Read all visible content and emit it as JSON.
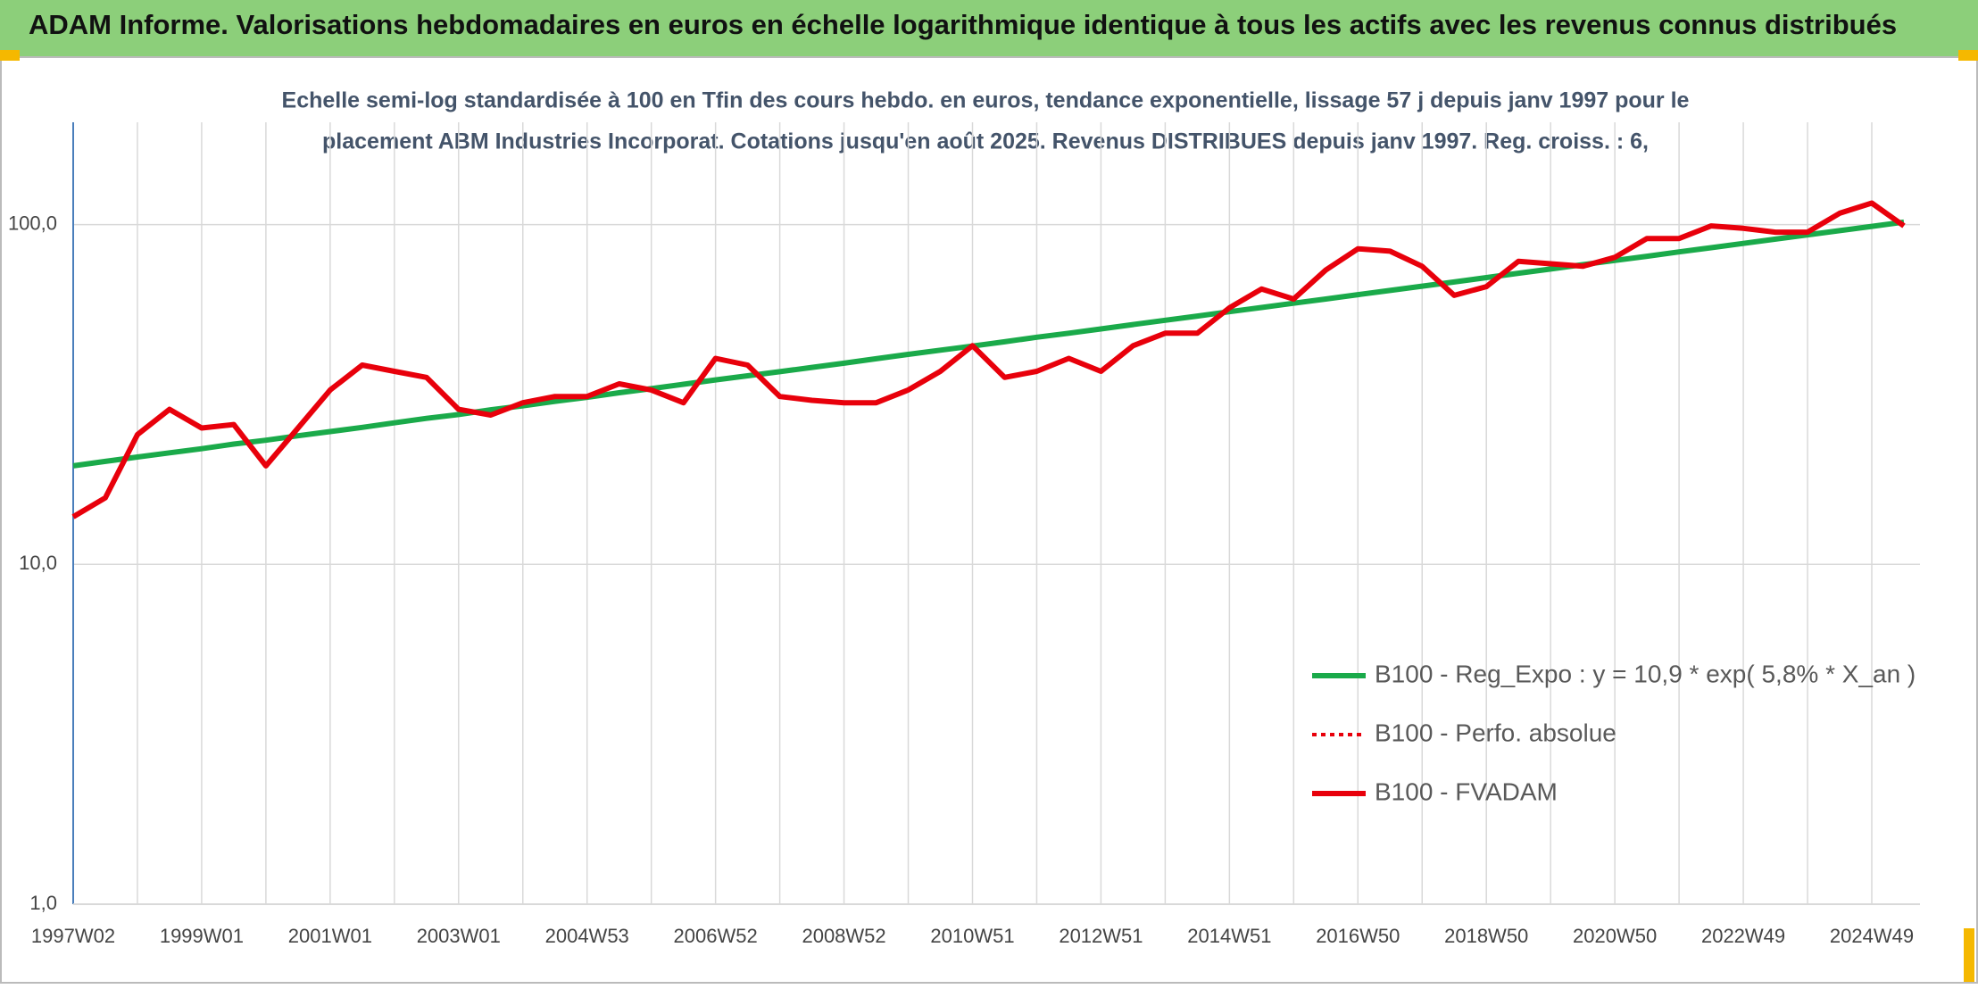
{
  "chart_data": {
    "type": "line",
    "title": "ADAM Informe. Valorisations hebdomadaires en euros en échelle logarithmique identique à tous les actifs avec les revenus connus distribués",
    "subtitle": [
      "Echelle semi-log standardisée à 100 en Tfin des cours hebdo. en euros, tendance exponentielle, lissage 57 j depuis janv 1997 pour le",
      "placement ABM Industries Incorporat. Cotations jusqu'en août 2025. Revenus DISTRIBUES depuis janv 1997. Reg. croiss. : 6,"
    ],
    "categories": [
      "1997W02",
      null,
      null,
      null,
      "1999W01",
      null,
      null,
      null,
      "2001W01",
      null,
      null,
      null,
      "2003W01",
      null,
      null,
      null,
      "2004W53",
      null,
      null,
      null,
      "2006W52",
      null,
      null,
      null,
      "2008W52",
      null,
      null,
      null,
      "2010W51",
      null,
      null,
      null,
      "2012W51",
      null,
      null,
      null,
      "2014W51",
      null,
      null,
      null,
      "2016W50",
      null,
      null,
      null,
      "2018W50",
      null,
      null,
      null,
      "2020W50",
      null,
      null,
      null,
      "2022W49",
      null,
      null,
      null,
      "2024W49",
      null
    ],
    "series": [
      {
        "name": "B100 - Reg_Expo : y = 10,9 * exp( 5,8% *  X_an )",
        "color": "#1aaa4a",
        "dash": "solid",
        "values": [
          19.5,
          20.1,
          20.7,
          21.3,
          21.9,
          22.6,
          23.2,
          23.9,
          24.6,
          25.3,
          26.1,
          26.9,
          27.6,
          28.5,
          29.3,
          30.2,
          31.0,
          32.0,
          32.9,
          33.9,
          34.9,
          35.9,
          36.9,
          38.0,
          39.1,
          40.3,
          41.5,
          42.7,
          43.9,
          45.2,
          46.6,
          47.9,
          49.3,
          50.8,
          52.3,
          53.8,
          55.4,
          57.0,
          58.7,
          60.4,
          62.2,
          64.0,
          65.9,
          67.8,
          69.8,
          71.9,
          74.0,
          76.2,
          78.4,
          80.7,
          83.1,
          85.5,
          88.0,
          90.6,
          93.3,
          96.0,
          98.8,
          101.7
        ]
      },
      {
        "name": "B100 - Perfo. absolue",
        "color": "#e8000b",
        "dash": "dotted",
        "values": [
          13.8,
          15.7,
          24.1,
          28.6,
          25.2,
          25.8,
          19.5,
          25.2,
          32.6,
          38.6,
          37,
          35.5,
          28.6,
          27.5,
          29.9,
          31.2,
          31.2,
          34,
          32.6,
          29.9,
          40.4,
          38.6,
          31.2,
          30.4,
          29.9,
          29.9,
          32.6,
          37,
          44,
          35.5,
          37,
          40.4,
          37,
          44,
          47.9,
          47.9,
          56.9,
          64.6,
          60.4,
          73.5,
          84.9,
          83.5,
          75.4,
          61.9,
          65.7,
          78,
          76.7,
          75.4,
          80.1,
          91,
          91,
          99.1,
          97.5,
          95,
          95,
          108,
          115.7,
          99.1
        ]
      },
      {
        "name": "B100 - FVADAM",
        "color": "#e8000b",
        "dash": "solid",
        "values": [
          13.8,
          15.7,
          24.1,
          28.6,
          25.2,
          25.8,
          19.5,
          25.2,
          32.6,
          38.6,
          37,
          35.5,
          28.6,
          27.5,
          29.9,
          31.2,
          31.2,
          34,
          32.6,
          29.9,
          40.4,
          38.6,
          31.2,
          30.4,
          29.9,
          29.9,
          32.6,
          37,
          44,
          35.5,
          37,
          40.4,
          37,
          44,
          47.9,
          47.9,
          56.9,
          64.6,
          60.4,
          73.5,
          84.9,
          83.5,
          75.4,
          61.9,
          65.7,
          78,
          76.7,
          75.4,
          80.1,
          91,
          91,
          99.1,
          97.5,
          95,
          95,
          108,
          115.7,
          99.1
        ]
      }
    ],
    "ylim": [
      1,
      200
    ],
    "log_scale": true,
    "yticks": [
      {
        "value": 1,
        "label": "1,0"
      },
      {
        "value": 10,
        "label": "10,0"
      },
      {
        "value": 100,
        "label": "100,0"
      }
    ],
    "grid": true,
    "legend": "lower right"
  }
}
